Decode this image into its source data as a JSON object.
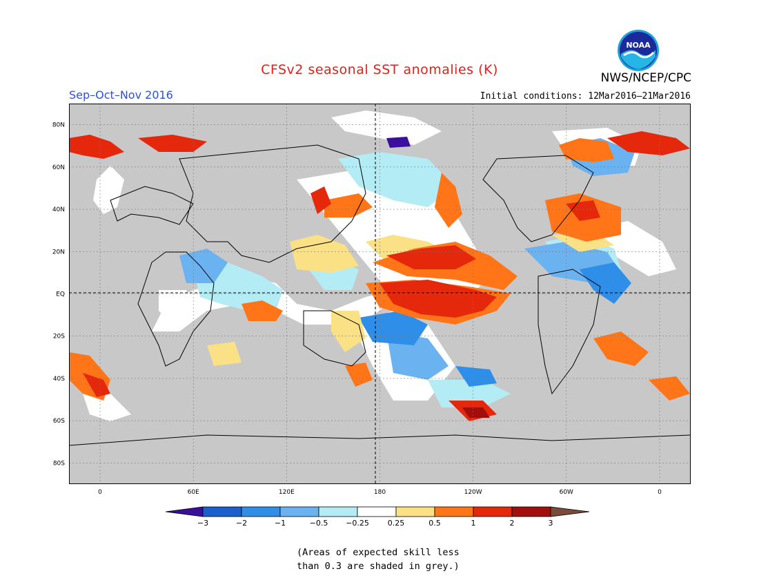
{
  "header": {
    "title": "CFSv2 seasonal SST anomalies (K)",
    "season": "Sep–Oct–Nov 2016",
    "agency": "NWS/NCEP/CPC",
    "initial_conditions": "Initial conditions: 12Mar2016–21Mar2016",
    "logo_text": "NOAA"
  },
  "map": {
    "projection": "cylindrical equidistant",
    "lon_range": [
      -20,
      380
    ],
    "lat_range": [
      -90,
      90
    ],
    "land_color": "#c8c8c8",
    "lat_labels": [
      "80N",
      "60N",
      "40N",
      "20N",
      "EQ",
      "20S",
      "40S",
      "60S",
      "80S"
    ],
    "lon_labels": [
      "0",
      "60E",
      "120E",
      "180",
      "120W",
      "60W",
      "0"
    ],
    "reference_lines": [
      "equator",
      "dateline"
    ]
  },
  "colorbar": {
    "labels": [
      "−3",
      "−2",
      "−1",
      "−0.5",
      "−0.25",
      "0.25",
      "0.5",
      "1",
      "2",
      "3"
    ],
    "colors": [
      "#3a0f9e",
      "#1b5fcf",
      "#2f8fe8",
      "#6bb2f0",
      "#b3ecf5",
      "#ffffff",
      "#fbe186",
      "#ff7518",
      "#e5280c",
      "#a10e0c",
      "#7a4a3a"
    ]
  },
  "note": {
    "line1": "(Areas of expected skill less",
    "line2": "than 0.3 are shaded in grey.)"
  }
}
